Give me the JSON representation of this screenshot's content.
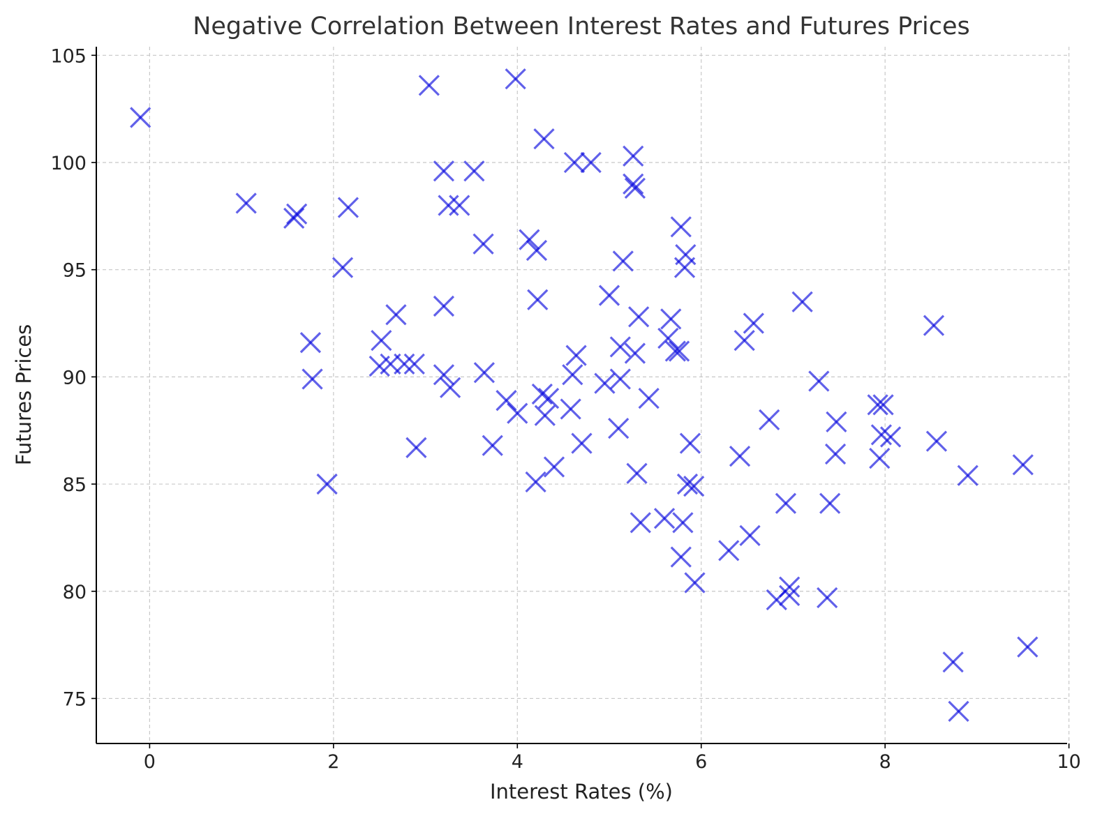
{
  "chart_data": {
    "type": "scatter",
    "title": "Negative Correlation Between Interest Rates and Futures Prices",
    "xlabel": "Interest Rates (%)",
    "ylabel": "Futures Prices",
    "xlim": [
      -0.58,
      9.98
    ],
    "ylim": [
      72.9,
      105.4
    ],
    "xticks": [
      0,
      2,
      4,
      6,
      8,
      10
    ],
    "yticks": [
      75,
      80,
      85,
      90,
      95,
      100,
      105
    ],
    "grid": true,
    "marker": "x",
    "color": "#0000dd",
    "opacity": 0.62,
    "points": [
      [
        -0.1,
        102.1
      ],
      [
        1.05,
        98.1
      ],
      [
        1.57,
        97.4
      ],
      [
        1.6,
        97.6
      ],
      [
        2.16,
        97.9
      ],
      [
        2.1,
        95.1
      ],
      [
        1.75,
        91.6
      ],
      [
        1.77,
        89.9
      ],
      [
        1.93,
        85.0
      ],
      [
        2.52,
        91.7
      ],
      [
        2.5,
        90.5
      ],
      [
        2.62,
        90.6
      ],
      [
        2.68,
        92.9
      ],
      [
        2.77,
        90.6
      ],
      [
        2.88,
        90.6
      ],
      [
        2.9,
        86.7
      ],
      [
        3.04,
        103.6
      ],
      [
        3.2,
        99.6
      ],
      [
        3.25,
        98.0
      ],
      [
        3.37,
        98.0
      ],
      [
        3.53,
        99.6
      ],
      [
        3.63,
        96.2
      ],
      [
        3.2,
        93.3
      ],
      [
        3.2,
        90.1
      ],
      [
        3.27,
        89.5
      ],
      [
        3.64,
        90.2
      ],
      [
        3.73,
        86.8
      ],
      [
        3.88,
        88.9
      ],
      [
        4.0,
        88.3
      ],
      [
        3.98,
        103.9
      ],
      [
        4.29,
        101.1
      ],
      [
        4.13,
        96.4
      ],
      [
        4.21,
        95.9
      ],
      [
        4.22,
        93.6
      ],
      [
        4.27,
        89.2
      ],
      [
        4.3,
        88.2
      ],
      [
        4.34,
        89.0
      ],
      [
        4.2,
        85.1
      ],
      [
        4.4,
        85.8
      ],
      [
        4.58,
        88.5
      ],
      [
        4.6,
        90.1
      ],
      [
        4.64,
        91.0
      ],
      [
        4.7,
        86.9
      ],
      [
        4.62,
        100.0
      ],
      [
        4.8,
        100.0
      ],
      [
        5.0,
        93.8
      ],
      [
        4.95,
        89.7
      ],
      [
        5.12,
        89.9
      ],
      [
        5.1,
        87.6
      ],
      [
        5.12,
        91.4
      ],
      [
        5.15,
        95.4
      ],
      [
        5.26,
        100.3
      ],
      [
        5.26,
        99.0
      ],
      [
        5.28,
        98.8
      ],
      [
        5.28,
        91.1
      ],
      [
        5.32,
        92.8
      ],
      [
        5.3,
        85.5
      ],
      [
        5.34,
        83.2
      ],
      [
        5.43,
        89.0
      ],
      [
        5.6,
        83.4
      ],
      [
        5.64,
        91.8
      ],
      [
        5.67,
        92.7
      ],
      [
        5.72,
        91.2
      ],
      [
        5.76,
        91.2
      ],
      [
        5.78,
        97.0
      ],
      [
        5.83,
        95.7
      ],
      [
        5.82,
        95.1
      ],
      [
        5.8,
        83.2
      ],
      [
        5.78,
        81.6
      ],
      [
        5.88,
        86.9
      ],
      [
        5.85,
        85.0
      ],
      [
        5.92,
        84.9
      ],
      [
        5.93,
        80.4
      ],
      [
        6.3,
        81.9
      ],
      [
        6.42,
        86.3
      ],
      [
        6.47,
        91.7
      ],
      [
        6.57,
        92.5
      ],
      [
        6.53,
        82.6
      ],
      [
        6.74,
        88.0
      ],
      [
        6.82,
        79.6
      ],
      [
        6.92,
        84.1
      ],
      [
        6.96,
        80.2
      ],
      [
        6.96,
        79.8
      ],
      [
        7.1,
        93.5
      ],
      [
        7.28,
        89.8
      ],
      [
        7.37,
        79.7
      ],
      [
        7.4,
        84.1
      ],
      [
        7.46,
        86.4
      ],
      [
        7.47,
        87.9
      ],
      [
        7.92,
        88.7
      ],
      [
        7.98,
        88.7
      ],
      [
        7.96,
        87.3
      ],
      [
        7.94,
        86.2
      ],
      [
        8.06,
        87.2
      ],
      [
        8.53,
        92.4
      ],
      [
        8.56,
        87.0
      ],
      [
        8.74,
        76.7
      ],
      [
        8.8,
        74.4
      ],
      [
        8.9,
        85.4
      ],
      [
        9.5,
        85.9
      ],
      [
        9.55,
        77.4
      ]
    ]
  }
}
